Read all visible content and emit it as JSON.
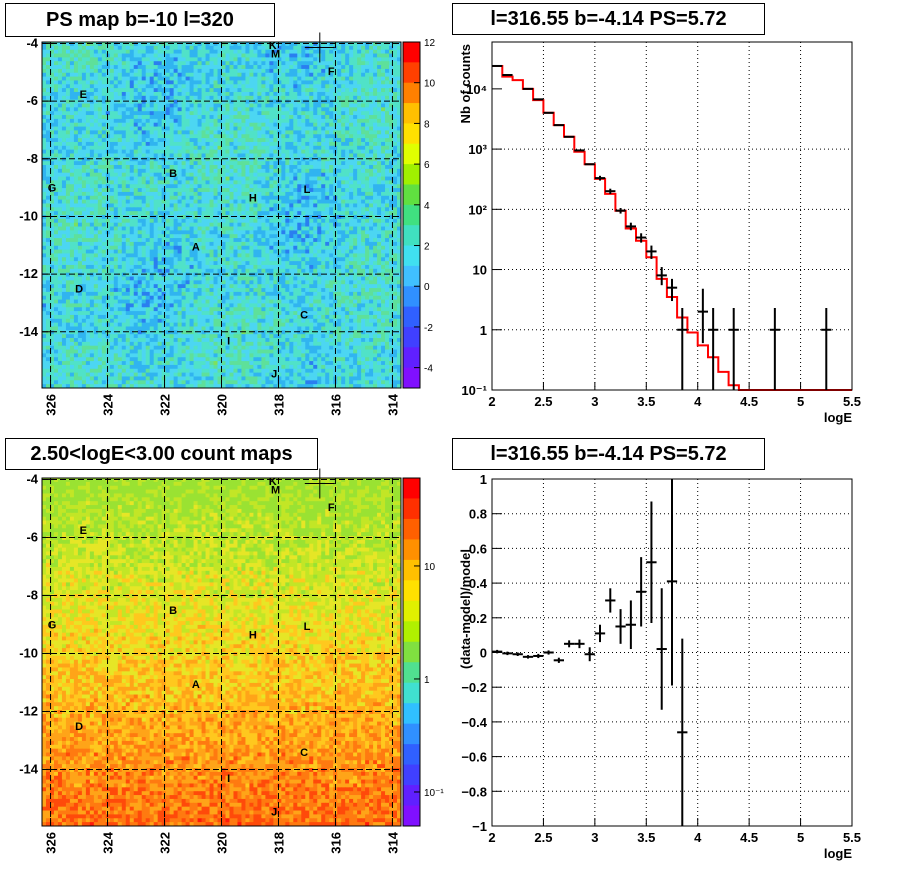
{
  "panels": {
    "tl_title": "PS map b=-10 l=320",
    "tr_title": "l=316.55 b=-4.14 PS=5.72",
    "bl_title": "2.50<logE<3.00 count maps",
    "br_title": "l=316.55 b=-4.14 PS=5.72"
  },
  "source_labels": [
    {
      "name": "K",
      "l": 318.2,
      "b": -4.05
    },
    {
      "name": "M",
      "l": 318.1,
      "b": -4.35
    },
    {
      "name": "F",
      "l": 316.15,
      "b": -4.95
    },
    {
      "name": "E",
      "l": 324.85,
      "b": -5.75
    },
    {
      "name": "B",
      "l": 321.7,
      "b": -8.5
    },
    {
      "name": "G",
      "l": 325.95,
      "b": -9.0
    },
    {
      "name": "H",
      "l": 318.9,
      "b": -9.35
    },
    {
      "name": "L",
      "l": 317.0,
      "b": -9.05
    },
    {
      "name": "A",
      "l": 320.9,
      "b": -11.05
    },
    {
      "name": "D",
      "l": 325.0,
      "b": -12.5
    },
    {
      "name": "C",
      "l": 317.1,
      "b": -13.4
    },
    {
      "name": "I",
      "l": 319.75,
      "b": -14.3
    },
    {
      "name": "J",
      "l": 318.15,
      "b": -15.45
    }
  ],
  "ps_marker": {
    "l": 316.55,
    "b": -4.14
  },
  "chart_data": [
    {
      "type": "heatmap",
      "panel": "top-left",
      "title": "PS map b=-10 l=320",
      "xlabel": "",
      "ylabel": "",
      "xlim": [
        326.3,
        313.7
      ],
      "ylim": [
        -15.95,
        -3.95
      ],
      "xticks": [
        326,
        324,
        322,
        320,
        318,
        316,
        314
      ],
      "yticks": [
        -4,
        -6,
        -8,
        -10,
        -12,
        -14
      ],
      "colorbar": {
        "scale": "linear",
        "range": [
          -5,
          12
        ],
        "ticks": [
          "12",
          "10",
          "8",
          "6",
          "4",
          "2",
          "0",
          "-2",
          "-4"
        ]
      },
      "grid": true,
      "palette": [
        "#6a2ae0",
        "#3a4af0",
        "#2a7ef0",
        "#30b4f0",
        "#4cd6f2",
        "#50e2c8",
        "#5ee09a",
        "#7ee05c",
        "#9ae03a"
      ]
    },
    {
      "type": "line",
      "panel": "top-right",
      "title": "l=316.55 b=-4.14 PS=5.72",
      "xlabel": "logE",
      "ylabel": "Nb of counts",
      "xlim": [
        2,
        5.5
      ],
      "ylim": [
        0.1,
        60000
      ],
      "yscale": "log",
      "xticks": [
        "2",
        "2.5",
        "3",
        "3.5",
        "4",
        "4.5",
        "5",
        "5.5"
      ],
      "yticks": [
        {
          "label": "10⁴",
          "v": 10000
        },
        {
          "label": "10³",
          "v": 1000
        },
        {
          "label": "10²",
          "v": 100
        },
        {
          "label": "10",
          "v": 10
        },
        {
          "label": "1",
          "v": 1
        },
        {
          "label": "10⁻¹",
          "v": 0.1
        }
      ],
      "grid": true,
      "model_color": "#ff0000",
      "model_bins": [
        [
          2.0,
          2.1,
          24000
        ],
        [
          2.1,
          2.2,
          16000
        ],
        [
          2.2,
          2.3,
          14000
        ],
        [
          2.3,
          2.4,
          10000
        ],
        [
          2.4,
          2.5,
          6500
        ],
        [
          2.5,
          2.6,
          4000
        ],
        [
          2.6,
          2.7,
          2500
        ],
        [
          2.7,
          2.8,
          1600
        ],
        [
          2.8,
          2.9,
          900
        ],
        [
          2.9,
          3.0,
          560
        ],
        [
          3.0,
          3.1,
          320
        ],
        [
          3.1,
          3.2,
          180
        ],
        [
          3.2,
          3.3,
          95
        ],
        [
          3.3,
          3.4,
          48
        ],
        [
          3.4,
          3.5,
          30
        ],
        [
          3.5,
          3.6,
          16
        ],
        [
          3.6,
          3.7,
          7
        ],
        [
          3.7,
          3.8,
          3.5
        ],
        [
          3.8,
          3.9,
          1.6
        ],
        [
          3.9,
          4.0,
          0.9
        ],
        [
          4.0,
          4.1,
          0.55
        ],
        [
          4.1,
          4.2,
          0.35
        ],
        [
          4.2,
          4.3,
          0.2
        ],
        [
          4.3,
          4.4,
          0.12
        ],
        [
          4.4,
          5.5,
          0.1
        ]
      ],
      "data_points": [
        [
          2.05,
          24000,
          null,
          null
        ],
        [
          2.15,
          17000,
          null,
          null
        ],
        [
          2.35,
          10000,
          null,
          null
        ],
        [
          2.45,
          6700,
          null,
          null
        ],
        [
          2.55,
          4000,
          null,
          null
        ],
        [
          2.65,
          2500,
          null,
          null
        ],
        [
          2.75,
          1600,
          null,
          null
        ],
        [
          2.85,
          950,
          null,
          null
        ],
        [
          2.95,
          560,
          null,
          null
        ],
        [
          3.05,
          330,
          300,
          360
        ],
        [
          3.15,
          200,
          180,
          220
        ],
        [
          3.25,
          95,
          85,
          105
        ],
        [
          3.35,
          52,
          45,
          60
        ],
        [
          3.45,
          34,
          28,
          40
        ],
        [
          3.55,
          20,
          15,
          25
        ],
        [
          3.65,
          8,
          5.5,
          11
        ],
        [
          3.75,
          5,
          3,
          7
        ],
        [
          3.85,
          1,
          0.1,
          2.3
        ],
        [
          4.05,
          2,
          0.6,
          4.8
        ],
        [
          4.15,
          1,
          0.1,
          2.3
        ],
        [
          4.35,
          1,
          0.1,
          2.3
        ],
        [
          4.75,
          1,
          0.1,
          2.3
        ],
        [
          5.25,
          1,
          0.1,
          2.3
        ]
      ]
    },
    {
      "type": "heatmap",
      "panel": "bottom-left",
      "title": "2.50<logE<3.00 count maps",
      "xlabel": "",
      "ylabel": "",
      "xlim": [
        326.3,
        313.7
      ],
      "ylim": [
        -15.95,
        -3.95
      ],
      "xticks": [
        326,
        324,
        322,
        320,
        318,
        316,
        314
      ],
      "yticks": [
        -4,
        -6,
        -8,
        -10,
        -12,
        -14
      ],
      "colorbar": {
        "scale": "log",
        "range": [
          0.05,
          60
        ],
        "ticks": [
          "10",
          "1",
          "10⁻¹"
        ]
      },
      "grid": true,
      "palette": [
        "#ff1a0a",
        "#ff4a0a",
        "#ff7a10",
        "#ffa418",
        "#ffc81e",
        "#e6e626",
        "#c2e626",
        "#9ae232"
      ]
    },
    {
      "type": "scatter",
      "panel": "bottom-right",
      "title": "l=316.55 b=-4.14 PS=5.72",
      "xlabel": "logE",
      "ylabel": "(data-model)/model",
      "xlim": [
        2,
        5.5
      ],
      "ylim": [
        -1,
        1
      ],
      "xticks": [
        "2",
        "2.5",
        "3",
        "3.5",
        "4",
        "4.5",
        "5",
        "5.5"
      ],
      "yticks": [
        "1",
        "0.8",
        "0.6",
        "0.4",
        "0.2",
        "0",
        "−0.2",
        "−0.4",
        "−0.6",
        "−0.8",
        "−1"
      ],
      "grid": true,
      "points": [
        [
          2.05,
          0.005,
          0.01
        ],
        [
          2.15,
          -0.005,
          0.01
        ],
        [
          2.25,
          -0.01,
          0.01
        ],
        [
          2.35,
          -0.025,
          0.01
        ],
        [
          2.45,
          -0.02,
          0.012
        ],
        [
          2.55,
          0.0,
          0.012
        ],
        [
          2.65,
          -0.045,
          0.015
        ],
        [
          2.75,
          0.05,
          0.02
        ],
        [
          2.85,
          0.05,
          0.025
        ],
        [
          2.95,
          -0.01,
          0.04
        ],
        [
          3.05,
          0.11,
          0.05
        ],
        [
          3.15,
          0.3,
          0.07
        ],
        [
          3.25,
          0.15,
          0.1
        ],
        [
          3.35,
          0.16,
          0.14
        ],
        [
          3.45,
          0.35,
          0.2
        ],
        [
          3.55,
          0.52,
          0.35
        ],
        [
          3.65,
          0.02,
          0.35
        ],
        [
          3.75,
          0.41,
          0.6
        ],
        [
          3.85,
          -0.46,
          0.54
        ]
      ]
    }
  ]
}
